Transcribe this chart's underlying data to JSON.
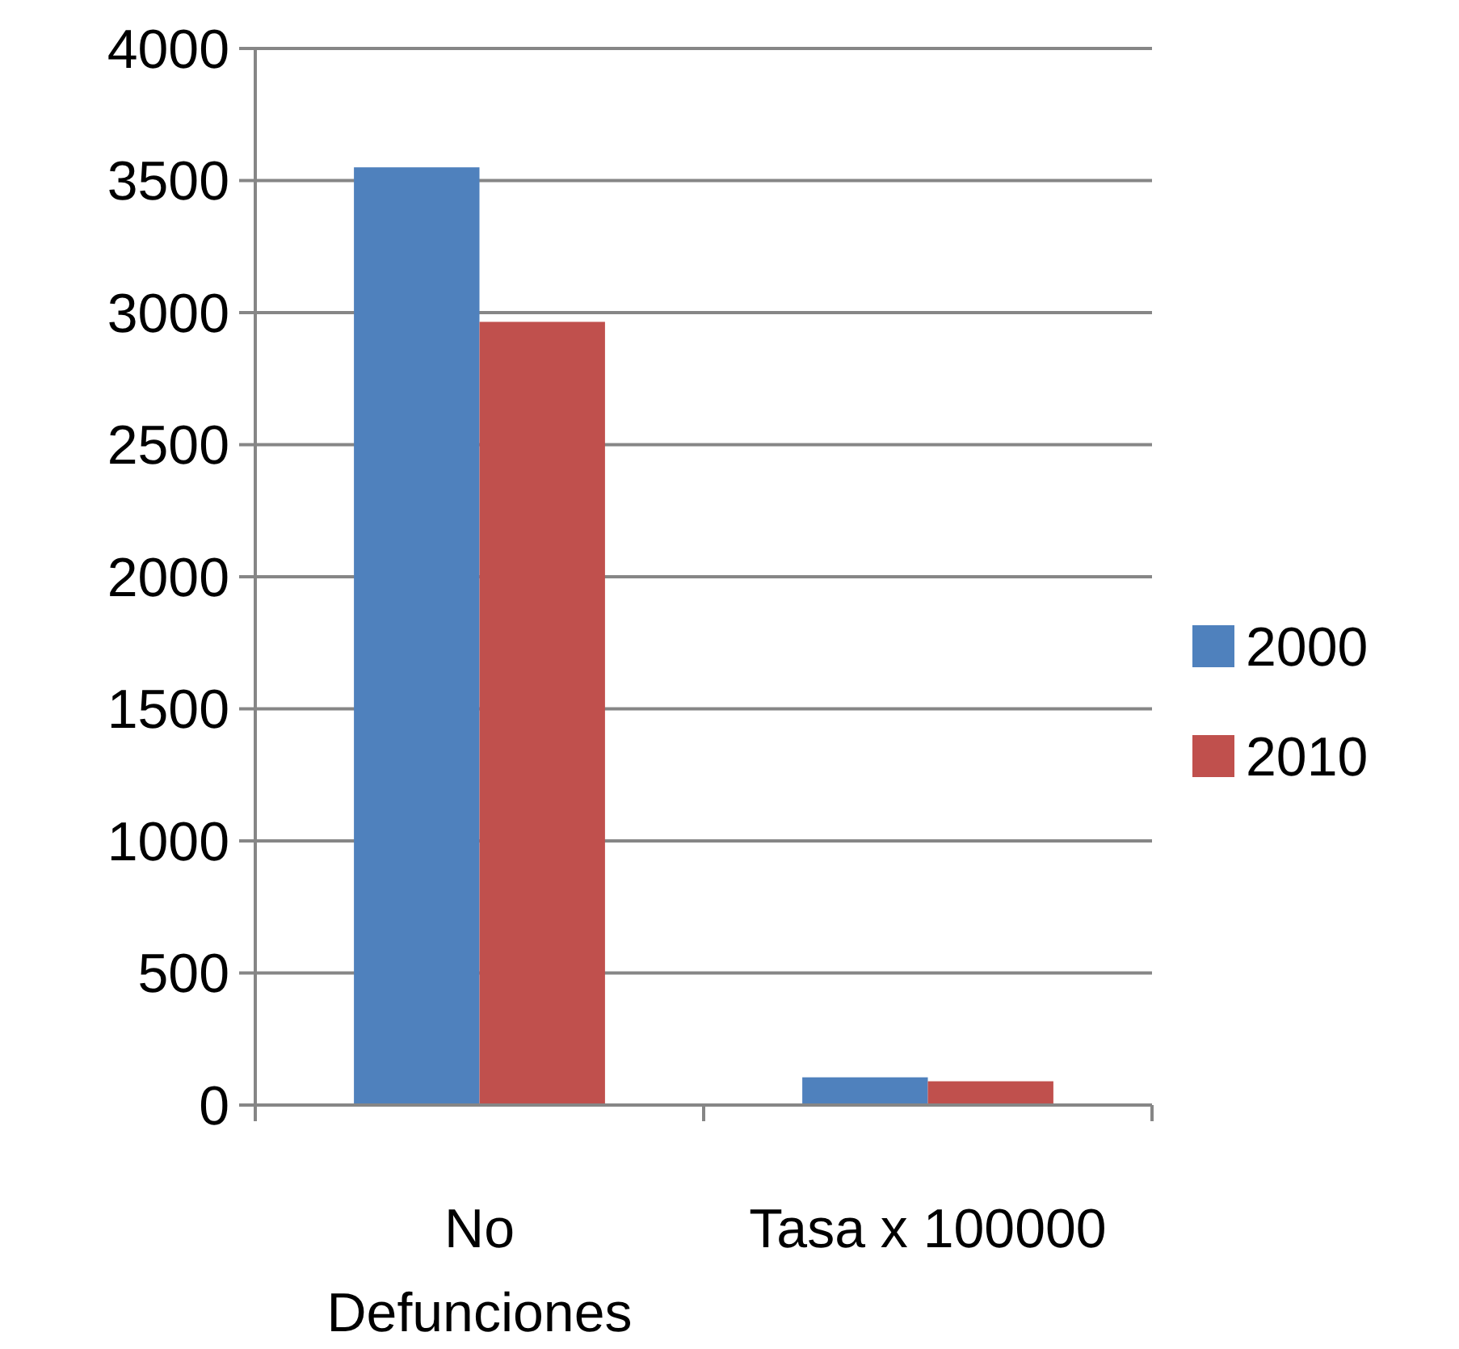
{
  "chart_data": {
    "type": "bar",
    "categories": [
      "No\nDefunciones",
      "Tasa x 100000"
    ],
    "series": [
      {
        "name": "2000",
        "color": "#4f81bd",
        "values": [
          3550,
          105
        ]
      },
      {
        "name": "2010",
        "color": "#c0504d",
        "values": [
          2965,
          90
        ]
      }
    ],
    "ylim": [
      0,
      4000
    ],
    "yticks": [
      0,
      500,
      1000,
      1500,
      2000,
      2500,
      3000,
      3500,
      4000
    ],
    "grid": "y",
    "legend": "right"
  }
}
